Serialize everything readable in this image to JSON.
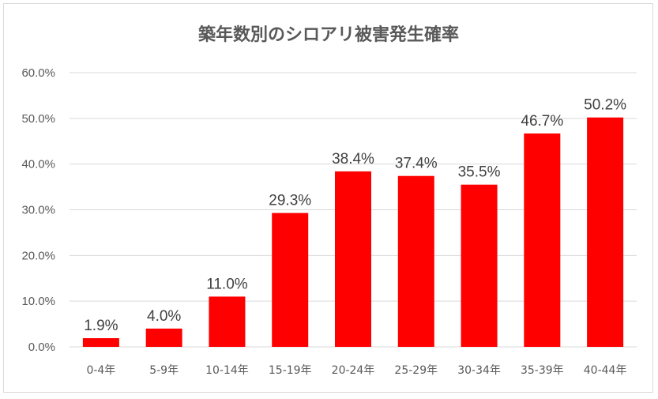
{
  "chart_data": {
    "type": "bar",
    "title": "築年数別のシロアリ被害発生確率",
    "categories": [
      "0-4年",
      "5-9年",
      "10-14年",
      "15-19年",
      "20-24年",
      "25-29年",
      "30-34年",
      "35-39年",
      "40-44年"
    ],
    "values": [
      1.9,
      4.0,
      11.0,
      29.3,
      38.4,
      37.4,
      35.5,
      46.7,
      50.2
    ],
    "data_labels": [
      "1.9%",
      "4.0%",
      "11.0%",
      "29.3%",
      "38.4%",
      "37.4%",
      "35.5%",
      "46.7%",
      "50.2%"
    ],
    "y_ticks": [
      "0.0%",
      "10.0%",
      "20.0%",
      "30.0%",
      "40.0%",
      "50.0%",
      "60.0%"
    ],
    "ylim": [
      0,
      60
    ],
    "xlabel": "",
    "ylabel": "",
    "grid": true,
    "legend": "none",
    "bar_color": "#ff0000"
  }
}
